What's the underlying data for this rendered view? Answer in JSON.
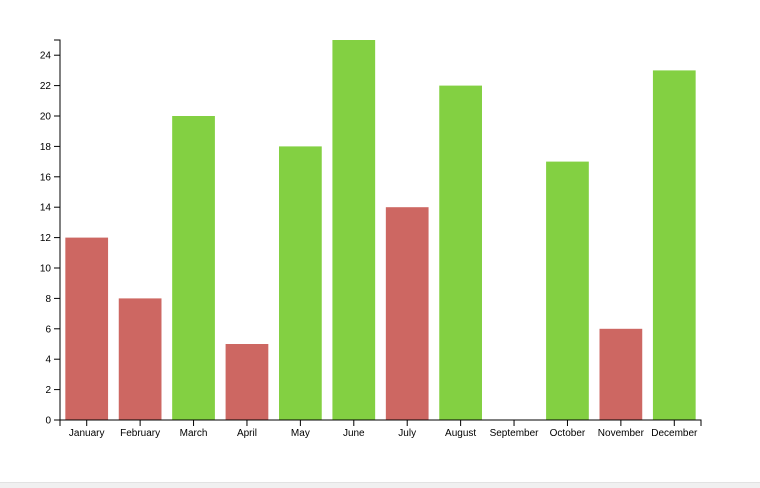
{
  "chart_data": {
    "type": "bar",
    "title": "",
    "xlabel": "",
    "ylabel": "",
    "categories": [
      "January",
      "February",
      "March",
      "April",
      "May",
      "June",
      "July",
      "August",
      "September",
      "October",
      "November",
      "December"
    ],
    "values": [
      12,
      8,
      20,
      5,
      18,
      25,
      14,
      22,
      0,
      17,
      6,
      23
    ],
    "ylim": [
      0,
      25
    ],
    "yticks": [
      0,
      2,
      4,
      6,
      8,
      10,
      12,
      14,
      16,
      18,
      20,
      22,
      24
    ],
    "grid": false,
    "legend": "none",
    "colors": {
      "low": "#cd6762",
      "high": "#83d042"
    },
    "color_threshold": 15
  }
}
